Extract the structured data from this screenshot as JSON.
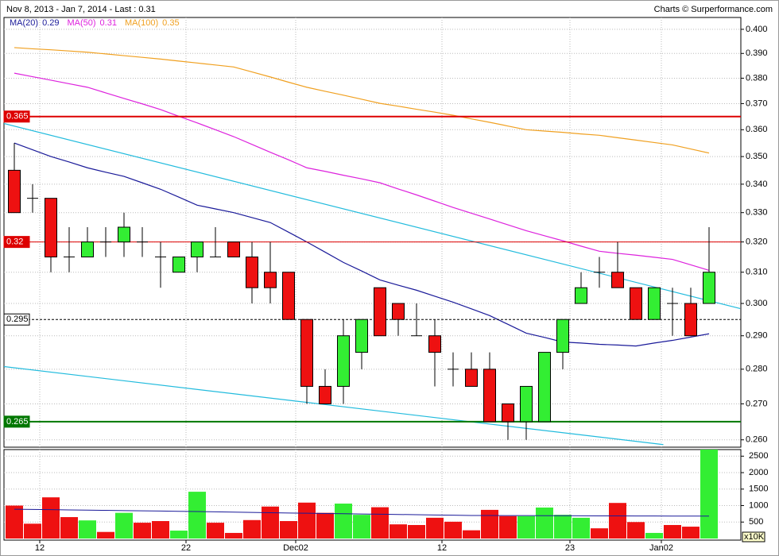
{
  "chart_data": [
    {
      "type": "candlestick",
      "title": "Nov 8, 2013 - Jan 7, 2014 - Last : 0.31",
      "source": "Charts © Surperformance.com",
      "categories": [
        null,
        null,
        "12",
        null,
        null,
        null,
        null,
        null,
        null,
        null,
        "22",
        null,
        null,
        null,
        null,
        null,
        "Dec02",
        null,
        null,
        null,
        null,
        null,
        null,
        null,
        "12",
        null,
        null,
        null,
        null,
        null,
        null,
        "23",
        null,
        null,
        null,
        null,
        "Jan02",
        null,
        null
      ],
      "open": [
        0.345,
        0.335,
        0.335,
        0.315,
        0.315,
        0.32,
        0.32,
        0.32,
        0.315,
        0.31,
        0.315,
        0.315,
        0.32,
        0.315,
        0.31,
        0.31,
        0.295,
        0.275,
        0.275,
        0.285,
        0.305,
        0.3,
        0.29,
        0.29,
        0.28,
        0.28,
        0.28,
        0.27,
        0.265,
        0.265,
        0.285,
        0.3,
        0.31,
        0.31,
        0.305,
        0.295,
        0.3,
        0.3,
        0.3
      ],
      "high": [
        0.355,
        0.34,
        0.335,
        0.325,
        0.325,
        0.325,
        0.33,
        0.325,
        0.32,
        0.315,
        0.32,
        0.325,
        0.32,
        0.32,
        0.32,
        0.31,
        0.295,
        0.28,
        0.295,
        0.295,
        0.305,
        0.3,
        0.3,
        0.295,
        0.285,
        0.285,
        0.285,
        0.27,
        0.275,
        0.285,
        0.295,
        0.31,
        0.315,
        0.32,
        0.305,
        0.305,
        0.305,
        0.305,
        0.325
      ],
      "low": [
        0.33,
        0.33,
        0.31,
        0.31,
        0.315,
        0.315,
        0.315,
        0.315,
        0.305,
        0.31,
        0.31,
        0.315,
        0.315,
        0.3,
        0.3,
        0.295,
        0.27,
        0.27,
        0.27,
        0.28,
        0.29,
        0.29,
        0.29,
        0.275,
        0.275,
        0.275,
        0.265,
        0.26,
        0.26,
        0.265,
        0.28,
        0.3,
        0.305,
        0.305,
        0.295,
        0.295,
        0.29,
        0.29,
        0.3
      ],
      "close": [
        0.33,
        0.335,
        0.315,
        0.315,
        0.32,
        0.32,
        0.325,
        0.32,
        0.315,
        0.315,
        0.32,
        0.315,
        0.315,
        0.305,
        0.305,
        0.295,
        0.275,
        0.27,
        0.29,
        0.295,
        0.29,
        0.295,
        0.29,
        0.285,
        0.28,
        0.275,
        0.265,
        0.265,
        0.275,
        0.285,
        0.295,
        0.305,
        0.31,
        0.305,
        0.295,
        0.305,
        0.3,
        0.29,
        0.31
      ],
      "up_color": "#33ee33",
      "down_color": "#ee1111",
      "series": [
        {
          "name": "MA(20)",
          "legend_value": "0.29",
          "color": "#1a1a99",
          "values": [
            0.355,
            0.3525,
            0.35,
            0.348,
            0.3459,
            0.3443,
            0.3428,
            0.3405,
            0.3382,
            0.3354,
            0.3326,
            0.3313,
            0.33,
            0.3283,
            0.3266,
            0.3233,
            0.32,
            0.3166,
            0.3132,
            0.3104,
            0.3075,
            0.3058,
            0.3042,
            0.3023,
            0.3004,
            0.2983,
            0.2962,
            0.2935,
            0.2908,
            0.2895,
            0.2881,
            0.2878,
            0.2874,
            0.2872,
            0.2869,
            0.2878,
            0.2886,
            0.2896,
            0.2906
          ]
        },
        {
          "name": "MA(50)",
          "legend_value": "0.31",
          "color": "#dd22dd",
          "values": [
            0.382,
            0.3806,
            0.3792,
            0.3778,
            0.3764,
            0.3742,
            0.372,
            0.3699,
            0.3677,
            0.3651,
            0.3626,
            0.36,
            0.3574,
            0.3545,
            0.3516,
            0.3488,
            0.3459,
            0.3446,
            0.3432,
            0.3419,
            0.3405,
            0.3383,
            0.3362,
            0.334,
            0.3318,
            0.3298,
            0.3278,
            0.3258,
            0.3238,
            0.3221,
            0.3204,
            0.3186,
            0.3169,
            0.3162,
            0.3156,
            0.3149,
            0.3142,
            0.3124,
            0.3106
          ]
        },
        {
          "name": "MA(100)",
          "legend_value": "0.35",
          "color": "#f0a020",
          "values": [
            0.3924,
            0.3919,
            0.3915,
            0.391,
            0.3905,
            0.3898,
            0.3891,
            0.3884,
            0.3877,
            0.3869,
            0.3861,
            0.3853,
            0.3845,
            0.3825,
            0.3805,
            0.3784,
            0.3764,
            0.3748,
            0.3733,
            0.3717,
            0.3701,
            0.369,
            0.3678,
            0.3667,
            0.3655,
            0.3641,
            0.3628,
            0.3614,
            0.36,
            0.3595,
            0.359,
            0.3584,
            0.3579,
            0.357,
            0.3561,
            0.3552,
            0.3543,
            0.3528,
            0.3513
          ]
        }
      ],
      "trendlines": [
        {
          "color": "#22bbdd",
          "x": [
            -0.6,
            39.7
          ],
          "values": [
            0.3624,
            0.2984
          ]
        },
        {
          "color": "#22bbdd",
          "x": [
            -0.6,
            35.5
          ],
          "values": [
            0.2808,
            0.2587
          ]
        }
      ],
      "hlines": [
        {
          "value": 0.365,
          "color": "#dd0000",
          "style": "thick"
        },
        {
          "value": 0.32,
          "color": "#dd0000",
          "style": "thin"
        },
        {
          "value": 0.295,
          "color": "#000000",
          "style": "dashed"
        },
        {
          "value": 0.265,
          "color": "#007700",
          "style": "thick"
        }
      ],
      "log_scale": true,
      "grid": true,
      "ylim": [
        0.258,
        0.405
      ],
      "yticks": [
        {
          "value": 0.4,
          "label": "0.400"
        },
        {
          "value": 0.39,
          "label": "0.390"
        },
        {
          "value": 0.38,
          "label": "0.380"
        },
        {
          "value": 0.37,
          "label": "0.370"
        },
        {
          "value": 0.36,
          "label": "0.360"
        },
        {
          "value": 0.35,
          "label": "0.350"
        },
        {
          "value": 0.34,
          "label": "0.340"
        },
        {
          "value": 0.33,
          "label": "0.330"
        },
        {
          "value": 0.32,
          "label": "0.320"
        },
        {
          "value": 0.31,
          "label": "0.310"
        },
        {
          "value": 0.3,
          "label": "0.300"
        },
        {
          "value": 0.29,
          "label": "0.290"
        },
        {
          "value": 0.28,
          "label": "0.280"
        },
        {
          "value": 0.27,
          "label": "0.270"
        },
        {
          "value": 0.26,
          "label": "0.260"
        }
      ]
    },
    {
      "type": "bar",
      "values": [
        1000,
        450,
        1250,
        650,
        550,
        200,
        780,
        480,
        530,
        240,
        1420,
        480,
        170,
        560,
        970,
        530,
        1090,
        780,
        1060,
        720,
        950,
        430,
        410,
        630,
        510,
        250,
        870,
        680,
        680,
        940,
        720,
        630,
        310,
        1080,
        500,
        170,
        410,
        360,
        2700
      ],
      "average": {
        "color": "#1a1a99",
        "values": [
          890,
          883,
          876,
          869,
          862,
          855,
          848,
          841,
          834,
          827,
          820,
          811,
          802,
          793,
          784,
          775,
          768,
          760,
          753,
          745,
          738,
          730,
          723,
          715,
          708,
          700,
          698,
          697,
          695,
          693,
          692,
          690,
          688,
          687,
          685,
          683,
          682,
          680,
          680
        ]
      },
      "unit": "x10K",
      "ylim": [
        0,
        2700
      ],
      "yticks": [
        500,
        1000,
        1500,
        2000,
        2500
      ],
      "grid": true
    }
  ]
}
